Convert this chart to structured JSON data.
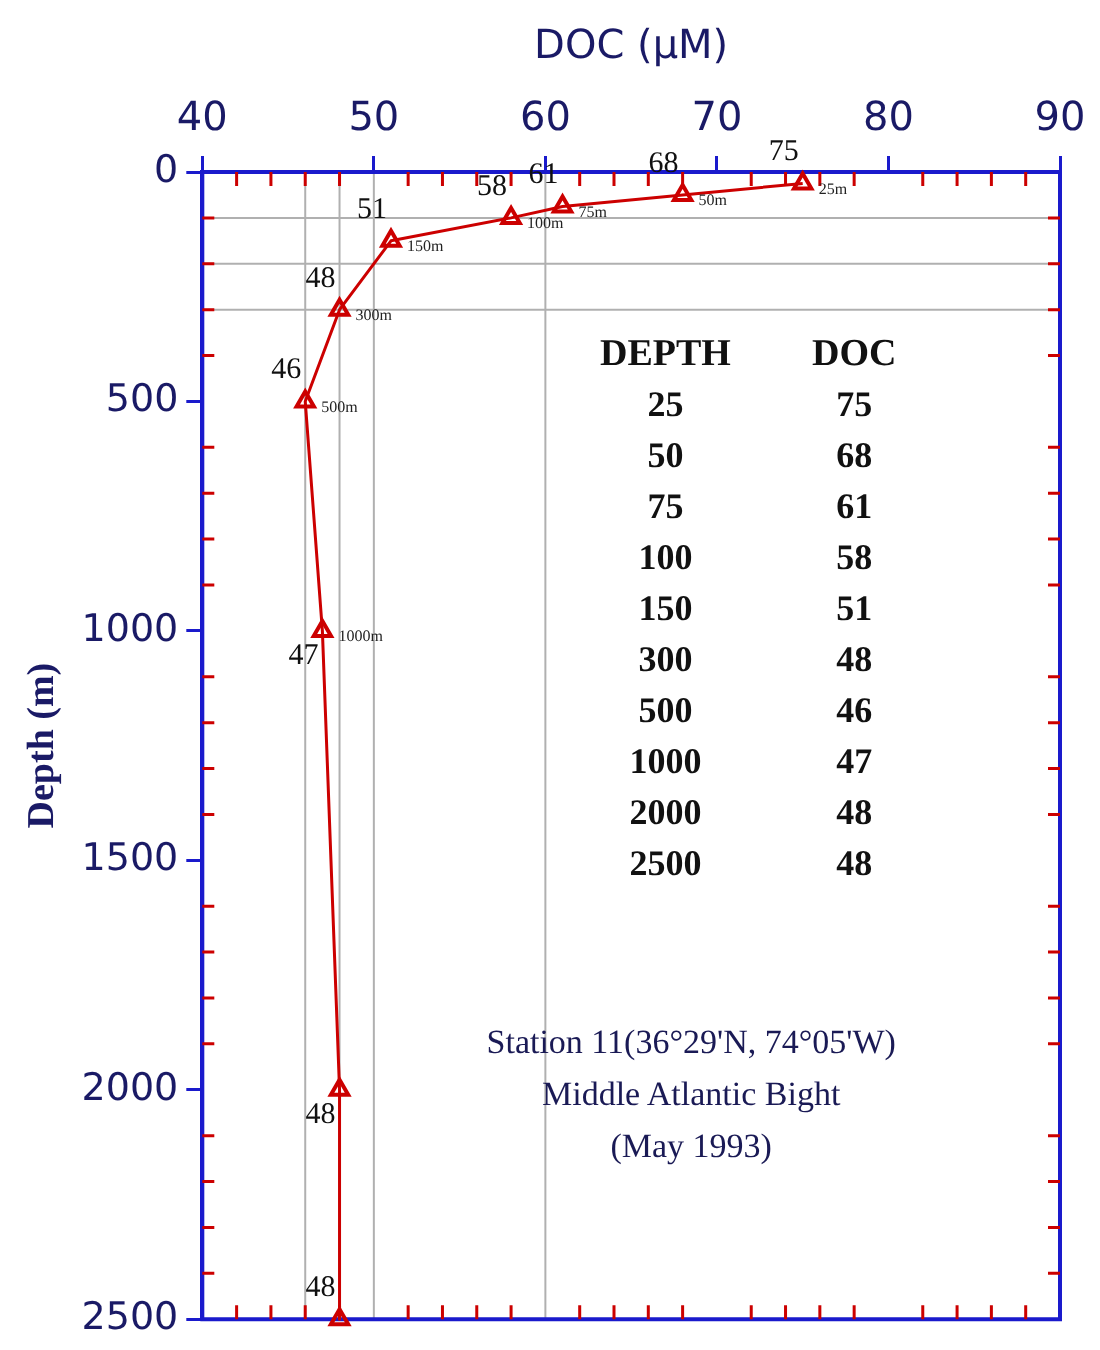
{
  "chart_data": {
    "type": "line",
    "xlabel": "DOC (µM)",
    "ylabel": "Depth (m)",
    "xlim": [
      40,
      90
    ],
    "xticks": [
      40,
      50,
      60,
      70,
      80,
      90
    ],
    "ylim": [
      2500,
      0
    ],
    "yticks": [
      0,
      500,
      1000,
      1500,
      2000,
      2500
    ],
    "series": [
      {
        "color": "#cc0000",
        "x": [
          75,
          68,
          61,
          58,
          51,
          48,
          46,
          47,
          48,
          48
        ],
        "values": [
          25,
          50,
          75,
          100,
          150,
          300,
          500,
          1000,
          2000,
          2500
        ]
      }
    ],
    "marker": "triangle",
    "line_style": "solid",
    "grid": false,
    "ref_lines": [
      {
        "axis": "x",
        "value": 46,
        "color": "#b0b0b0"
      },
      {
        "axis": "x",
        "value": 48,
        "color": "#b0b0b0"
      },
      {
        "axis": "x",
        "value": 50,
        "color": "#b0b0b0"
      },
      {
        "axis": "x",
        "value": 60,
        "color": "#b0b0b0"
      },
      {
        "axis": "y",
        "value": 100,
        "color": "#b0b0b0"
      },
      {
        "axis": "y",
        "value": 200,
        "color": "#b0b0b0"
      },
      {
        "axis": "y",
        "value": 300,
        "color": "#b0b0b0"
      }
    ],
    "annotations": [
      {
        "text": "75",
        "x": 75,
        "y": 25
      },
      {
        "text": "68",
        "x": 68,
        "y": 50
      },
      {
        "text": "61",
        "x": 61,
        "y": 75
      },
      {
        "text": "58",
        "x": 58,
        "y": 100
      },
      {
        "text": "51",
        "x": 51,
        "y": 150
      },
      {
        "text": "48",
        "x": 48,
        "y": 300
      },
      {
        "text": "46",
        "x": 46,
        "y": 500
      },
      {
        "text": "47",
        "x": 47,
        "y": 1000
      },
      {
        "text": "48",
        "x": 48,
        "y": 2000
      },
      {
        "text": "48",
        "x": 48,
        "y": 2500
      },
      {
        "text": "25m",
        "x": 75,
        "y": 25
      },
      {
        "text": "50m",
        "x": 68,
        "y": 50
      },
      {
        "text": "75m",
        "x": 61,
        "y": 75
      },
      {
        "text": "100m",
        "x": 58,
        "y": 100
      },
      {
        "text": "150m",
        "x": 51,
        "y": 150
      },
      {
        "text": "300m",
        "x": 48,
        "y": 300
      },
      {
        "text": "500m",
        "x": 46,
        "y": 500
      },
      {
        "text": "1000m",
        "x": 47,
        "y": 1000
      },
      "DEPTH",
      "DOC",
      "25",
      "75",
      "50",
      "68",
      "75",
      "61",
      "100",
      "58",
      "150",
      "51",
      "300",
      "48",
      "500",
      "46",
      "1000",
      "47",
      "2000",
      "48",
      "2500",
      "48",
      "Station 11(36°29'N, 74°05'W)\nMiddle Atlantic Bight\n(May 1993)"
    ],
    "tick_labels": "xy"
  }
}
